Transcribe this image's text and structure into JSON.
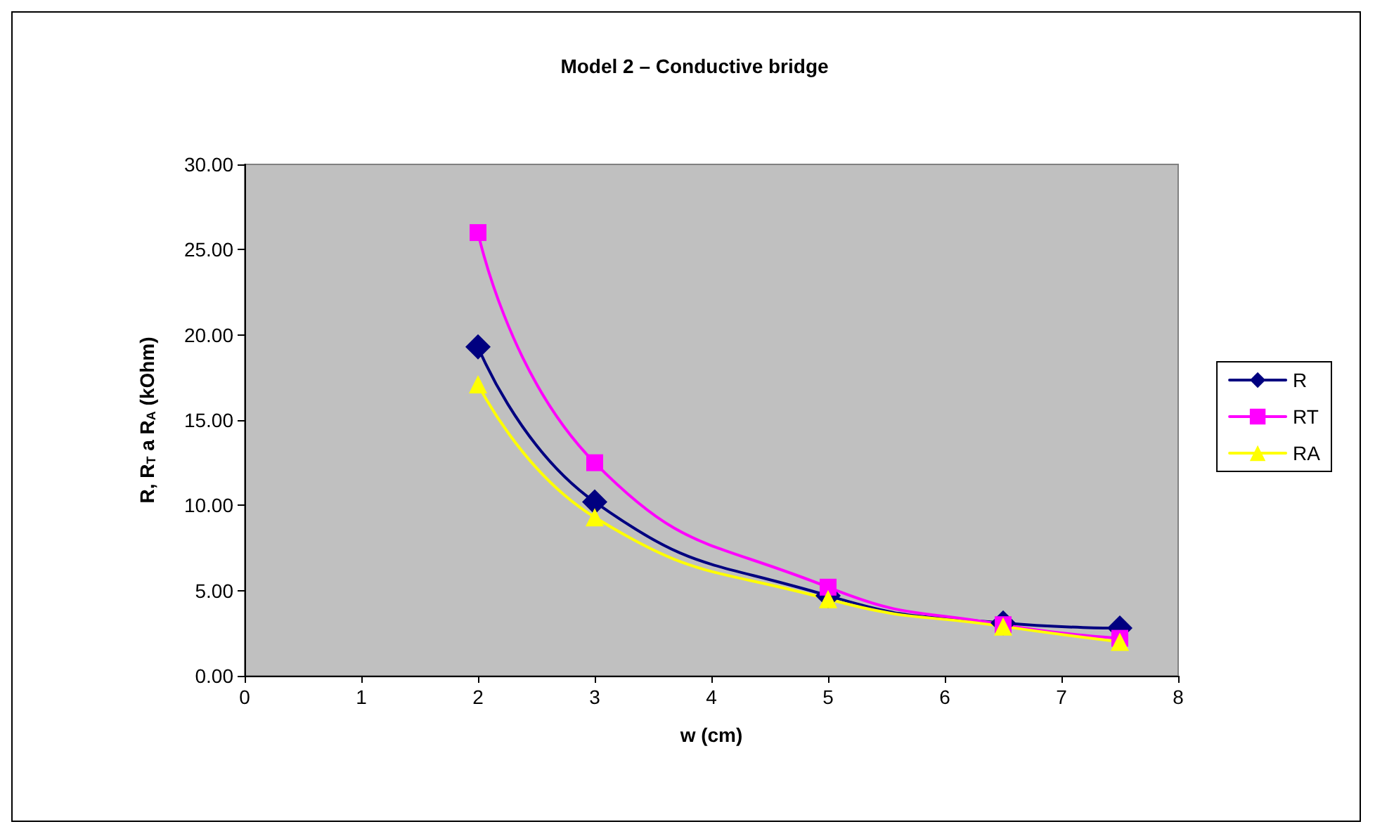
{
  "chart_data": {
    "type": "line",
    "title": "Model 2 – Conductive bridge",
    "xlabel": "w (cm)",
    "ylabel": "R, R$_{T}$ a R$_{A}$ (kOhm)",
    "x": [
      2,
      3,
      5,
      6.5,
      7.5
    ],
    "series": [
      {
        "name": "R",
        "color": "#000080",
        "marker": "diamond",
        "values": [
          19.3,
          10.2,
          4.7,
          3.1,
          2.8
        ]
      },
      {
        "name": "RT",
        "color": "#ff00ff",
        "marker": "square",
        "values": [
          26.0,
          12.5,
          5.2,
          3.0,
          2.2
        ]
      },
      {
        "name": "RA",
        "color": "#ffff00",
        "marker": "triangle",
        "values": [
          17.1,
          9.3,
          4.5,
          2.9,
          2.0
        ]
      }
    ],
    "xlim": [
      0,
      8
    ],
    "xticks": [
      0,
      1,
      2,
      3,
      4,
      5,
      6,
      7,
      8
    ],
    "ylim": [
      0,
      30
    ],
    "yticks": [
      {
        "value": 0,
        "label": "0.00"
      },
      {
        "value": 5,
        "label": "5.00"
      },
      {
        "value": 10,
        "label": "10.00"
      },
      {
        "value": 15,
        "label": "15.00"
      },
      {
        "value": 20,
        "label": "20.00"
      },
      {
        "value": 25,
        "label": "25.00"
      },
      {
        "value": 30,
        "label": "30.00"
      }
    ],
    "grid": false,
    "legend": "right"
  }
}
